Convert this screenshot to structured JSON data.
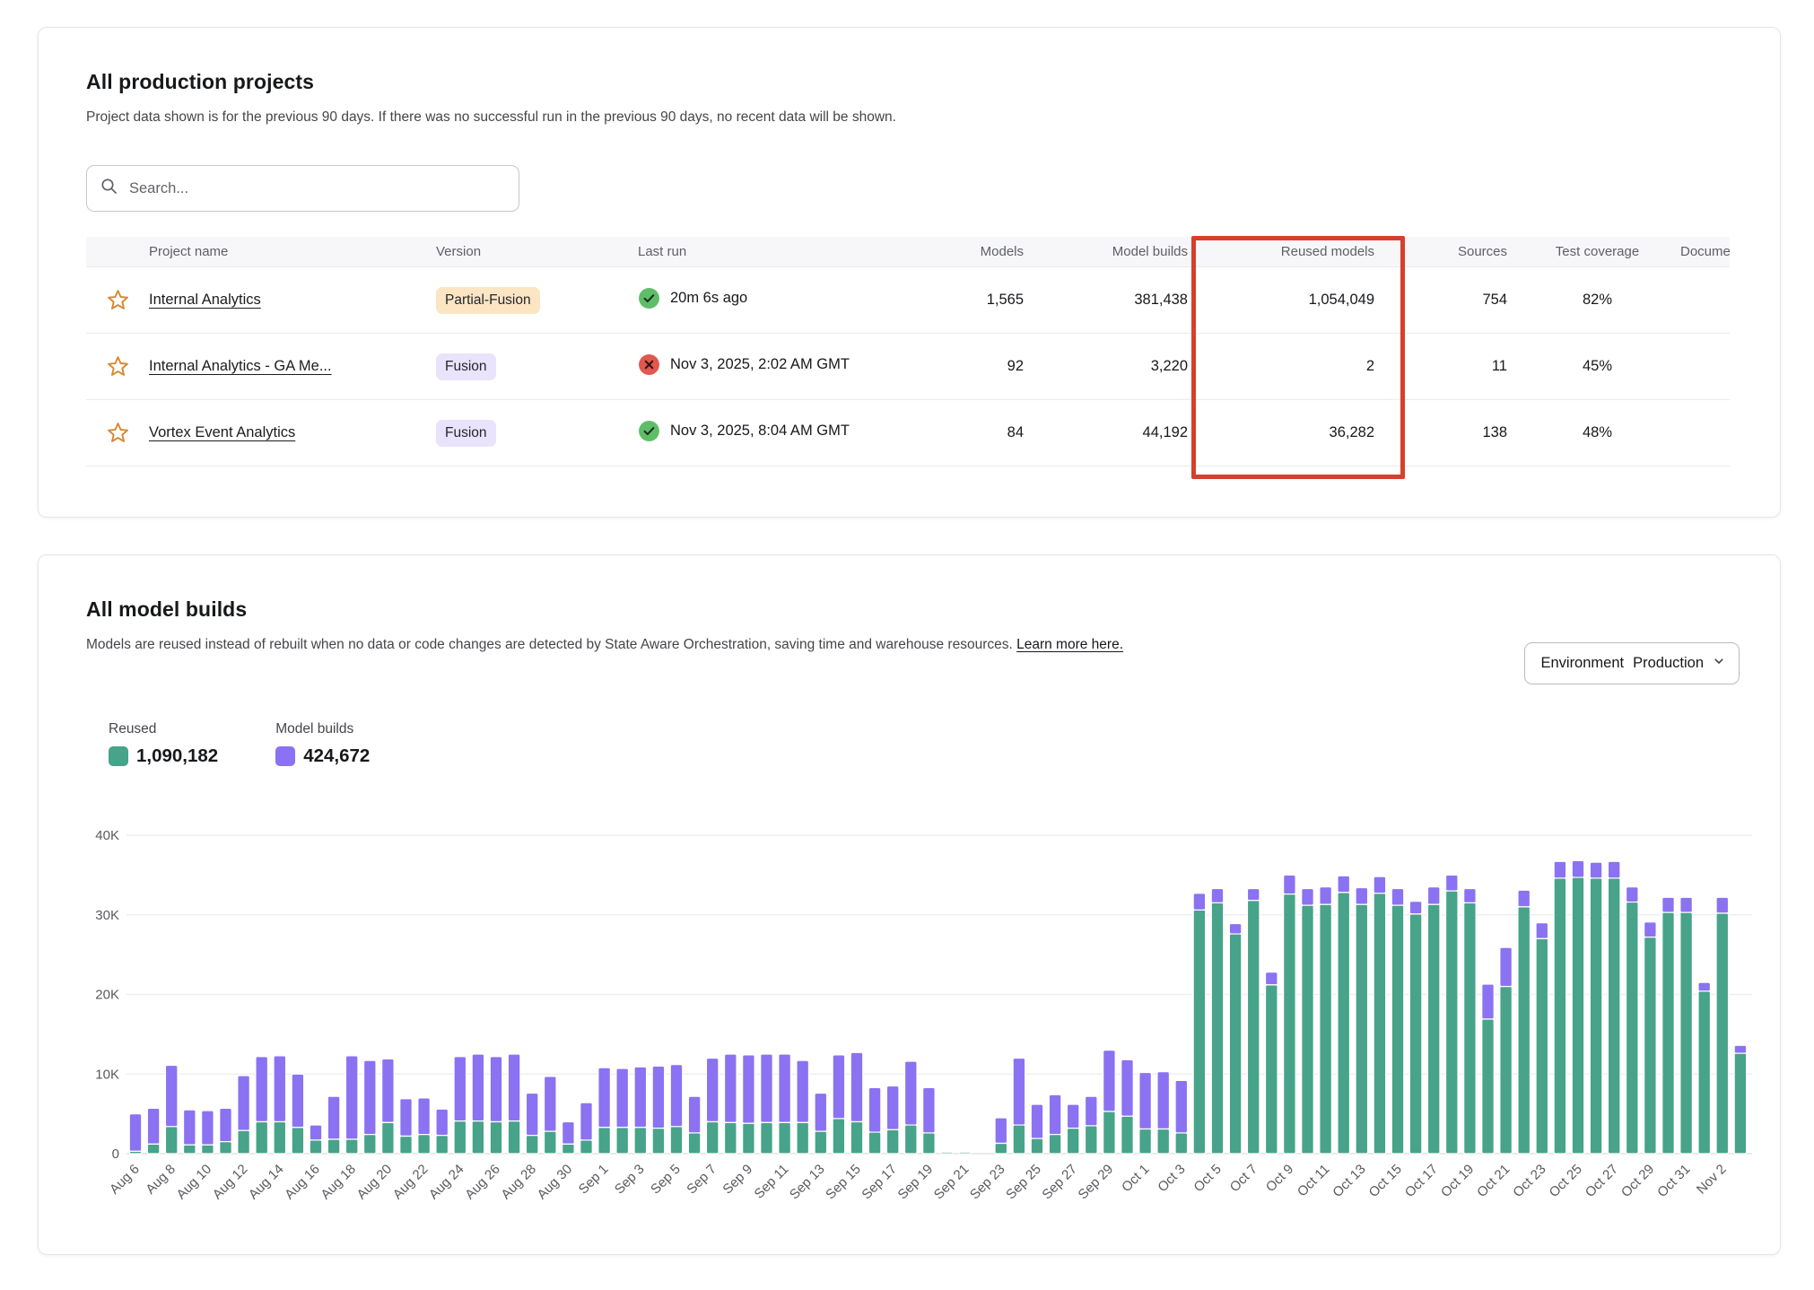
{
  "projects_card": {
    "title": "All production projects",
    "subtitle": "Project data shown is for the previous 90 days. If there was no successful run in the previous 90 days, no recent data will be shown.",
    "search": {
      "placeholder": "Search..."
    },
    "table": {
      "columns": [
        "Project name",
        "Version",
        "Last run",
        "Models",
        "Model builds",
        "Reused models",
        "Sources",
        "Test coverage",
        "Documentation"
      ],
      "rows": [
        {
          "name": "Internal Analytics",
          "version": "Partial-Fusion",
          "version_style": "partial",
          "last_run": "20m 6s ago",
          "last_run_status": "success",
          "models": "1,565",
          "model_builds": "381,438",
          "reused_models": "1,054,049",
          "sources": "754",
          "test_coverage": "82%"
        },
        {
          "name": "Internal Analytics - GA Me...",
          "version": "Fusion",
          "version_style": "fusion",
          "last_run": "Nov 3, 2025, 2:02 AM GMT",
          "last_run_status": "error",
          "models": "92",
          "model_builds": "3,220",
          "reused_models": "2",
          "sources": "11",
          "test_coverage": "45%"
        },
        {
          "name": "Vortex Event Analytics",
          "version": "Fusion",
          "version_style": "fusion",
          "last_run": "Nov 3, 2025, 8:04 AM GMT",
          "last_run_status": "success",
          "models": "84",
          "model_builds": "44,192",
          "reused_models": "36,282",
          "sources": "138",
          "test_coverage": "48%"
        }
      ]
    },
    "annotation": {
      "highlights": "Reused models column",
      "color": "#d6402b"
    },
    "status_colors": {
      "success": "#5ebe68",
      "error": "#e2574e"
    },
    "badge_colors": {
      "partial": "#fbe5c3",
      "fusion": "#e9e3fc"
    },
    "star_color": "#d9882f"
  },
  "builds_card": {
    "title": "All model builds",
    "subtitle": "Models are reused instead of rebuilt when no data or code changes are detected by State Aware Orchestration, saving time and warehouse resources.",
    "learn_more": "Learn more here.",
    "environment": {
      "label": "Environment",
      "value": "Production"
    },
    "legend": [
      {
        "label": "Reused",
        "value": "1,090,182",
        "color": "#47a38a"
      },
      {
        "label": "Model builds",
        "value": "424,672",
        "color": "#8b72f2"
      }
    ]
  },
  "chart_data": {
    "type": "bar",
    "stacked": true,
    "title": "All model builds",
    "value_unit": "thousands",
    "ylim": [
      0,
      40
    ],
    "y_ticks": [
      "0",
      "10K",
      "20K",
      "30K",
      "40K"
    ],
    "grid": true,
    "legend_position": "top-left",
    "x_label_every": 2,
    "series": [
      {
        "name": "Reused",
        "color": "#47a38a",
        "total": "1,090,182"
      },
      {
        "name": "Model builds",
        "color": "#8b72f2",
        "total": "424,672"
      }
    ],
    "categories": [
      "Aug 6",
      "Aug 7",
      "Aug 8",
      "Aug 9",
      "Aug 10",
      "Aug 11",
      "Aug 12",
      "Aug 13",
      "Aug 14",
      "Aug 15",
      "Aug 16",
      "Aug 17",
      "Aug 18",
      "Aug 19",
      "Aug 20",
      "Aug 21",
      "Aug 22",
      "Aug 23",
      "Aug 24",
      "Aug 25",
      "Aug 26",
      "Aug 27",
      "Aug 28",
      "Aug 29",
      "Aug 30",
      "Aug 31",
      "Sep 1",
      "Sep 2",
      "Sep 3",
      "Sep 4",
      "Sep 5",
      "Sep 6",
      "Sep 7",
      "Sep 8",
      "Sep 9",
      "Sep 10",
      "Sep 11",
      "Sep 12",
      "Sep 13",
      "Sep 14",
      "Sep 15",
      "Sep 16",
      "Sep 17",
      "Sep 18",
      "Sep 19",
      "Sep 20",
      "Sep 21",
      "Sep 22",
      "Sep 23",
      "Sep 24",
      "Sep 25",
      "Sep 26",
      "Sep 27",
      "Sep 28",
      "Sep 29",
      "Sep 30",
      "Oct 1",
      "Oct 2",
      "Oct 3",
      "Oct 4",
      "Oct 5",
      "Oct 6",
      "Oct 7",
      "Oct 8",
      "Oct 9",
      "Oct 10",
      "Oct 11",
      "Oct 12",
      "Oct 13",
      "Oct 14",
      "Oct 15",
      "Oct 16",
      "Oct 17",
      "Oct 18",
      "Oct 19",
      "Oct 20",
      "Oct 21",
      "Oct 22",
      "Oct 23",
      "Oct 24",
      "Oct 25",
      "Oct 26",
      "Oct 27",
      "Oct 28",
      "Oct 29",
      "Oct 30",
      "Oct 31",
      "Nov 1",
      "Nov 2",
      "Nov 3"
    ],
    "reused": [
      0.3,
      1.2,
      3.4,
      1.1,
      1.1,
      1.5,
      2.9,
      4.0,
      4.0,
      3.3,
      1.7,
      1.8,
      1.8,
      2.4,
      3.9,
      2.2,
      2.4,
      2.3,
      4.1,
      4.1,
      4.0,
      4.1,
      2.3,
      2.8,
      1.2,
      1.7,
      3.3,
      3.3,
      3.3,
      3.2,
      3.4,
      2.6,
      4.0,
      3.9,
      3.8,
      3.9,
      3.9,
      3.9,
      2.8,
      4.4,
      4.0,
      2.7,
      3.0,
      3.6,
      2.6,
      0.2,
      0.2,
      0,
      1.3,
      3.6,
      1.9,
      2.4,
      3.2,
      3.5,
      5.3,
      4.7,
      3.1,
      3.1,
      2.6,
      30.6,
      31.5,
      27.6,
      31.8,
      21.2,
      32.6,
      31.2,
      31.3,
      32.8,
      31.3,
      32.7,
      31.2,
      30.1,
      31.3,
      33.0,
      31.5,
      16.9,
      21.0,
      31.0,
      27.0,
      34.6,
      34.7,
      34.6,
      34.6,
      31.6,
      27.2,
      30.3,
      30.3,
      20.4,
      30.2,
      12.6
    ],
    "built": [
      4.7,
      4.5,
      7.7,
      4.4,
      4.3,
      4.2,
      6.9,
      8.2,
      8.3,
      6.7,
      1.9,
      5.4,
      10.5,
      9.3,
      8.0,
      4.7,
      4.6,
      3.3,
      8.1,
      8.4,
      8.2,
      8.4,
      5.3,
      6.9,
      2.8,
      4.7,
      7.5,
      7.4,
      7.6,
      7.8,
      7.8,
      4.6,
      8.0,
      8.6,
      8.6,
      8.6,
      8.6,
      7.8,
      4.8,
      8.0,
      8.7,
      5.6,
      5.5,
      8.0,
      5.7,
      0.1,
      0.05,
      0,
      3.2,
      8.4,
      4.3,
      5.0,
      3.0,
      3.7,
      7.7,
      7.1,
      7.1,
      7.2,
      6.6,
      2.1,
      1.8,
      1.3,
      1.5,
      1.6,
      2.4,
      2.1,
      2.2,
      2.1,
      2.1,
      2.1,
      2.1,
      1.6,
      2.2,
      2.0,
      1.8,
      4.4,
      4.9,
      2.1,
      2.0,
      2.1,
      2.1,
      2.0,
      2.1,
      1.9,
      1.9,
      1.9,
      1.9,
      1.1,
      2.0,
      1.0
    ]
  }
}
